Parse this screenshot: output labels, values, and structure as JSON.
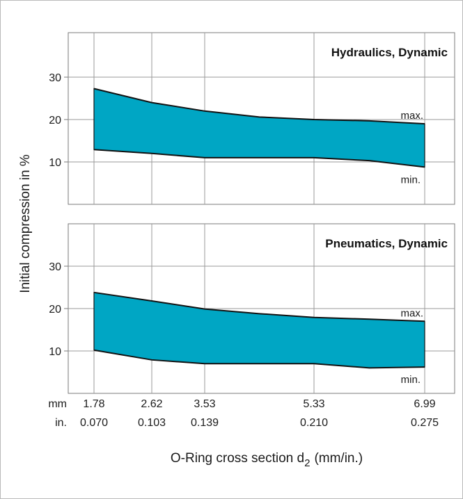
{
  "chart_data": {
    "type": "area",
    "ylabel": "Initial compression in %",
    "xlabel_main": "O-Ring cross section d",
    "xlabel_sub": "2",
    "xlabel_unit": "(mm/in.)",
    "unit_mm": "mm",
    "unit_in": "in.",
    "x_mm": [
      "1.78",
      "2.62",
      "3.53",
      "5.33",
      "6.99"
    ],
    "x_in": [
      "0.070",
      "0.103",
      "0.139",
      "0.210",
      "0.275"
    ],
    "grid": true,
    "panels": [
      {
        "title": "Hydraulics, Dynamic",
        "yticks": [
          "10",
          "20",
          "30"
        ],
        "ylim": [
          0,
          40
        ],
        "fill_color": "#00a6c4",
        "max_label": "max.",
        "min_label": "min.",
        "max": {
          "x": [
            1.78,
            2.62,
            3.53,
            4.43,
            5.33,
            6.16,
            6.99
          ],
          "y": [
            27.3,
            24.0,
            22.0,
            20.6,
            20.0,
            19.7,
            19.0
          ]
        },
        "min": {
          "x": [
            1.78,
            2.62,
            3.53,
            4.43,
            5.33,
            6.16,
            6.99
          ],
          "y": [
            12.9,
            12.0,
            11.0,
            11.0,
            11.0,
            10.3,
            8.8
          ]
        }
      },
      {
        "title": "Pneumatics, Dynamic",
        "yticks": [
          "10",
          "20",
          "30"
        ],
        "ylim": [
          0,
          40
        ],
        "fill_color": "#00a6c4",
        "max_label": "max.",
        "min_label": "min.",
        "max": {
          "x": [
            1.78,
            2.62,
            3.53,
            4.43,
            5.33,
            6.16,
            6.99
          ],
          "y": [
            23.8,
            21.8,
            19.9,
            18.8,
            17.9,
            17.5,
            17.0
          ]
        },
        "min": {
          "x": [
            1.78,
            2.62,
            3.53,
            4.43,
            5.33,
            6.16,
            6.99
          ],
          "y": [
            10.2,
            7.9,
            7.0,
            7.0,
            7.0,
            6.0,
            6.2
          ]
        }
      }
    ]
  }
}
